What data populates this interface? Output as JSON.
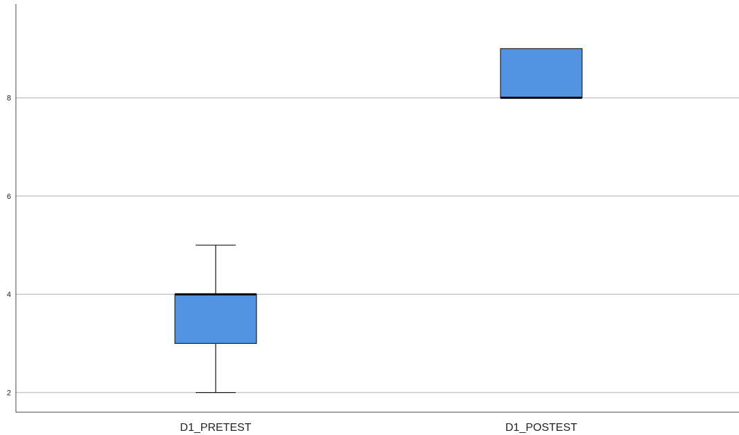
{
  "chart_data": {
    "type": "box",
    "title": "",
    "xlabel": "",
    "ylabel": "",
    "categories": [
      "D1_PRETEST",
      "D1_POSTEST"
    ],
    "boxes": [
      {
        "category": "D1_PRETEST",
        "min": 2,
        "q1": 3,
        "median": 4,
        "q3": 4,
        "max": 5
      },
      {
        "category": "D1_POSTEST",
        "min": 8,
        "q1": 8,
        "median": 8,
        "q3": 9,
        "max": 9
      }
    ],
    "yticks": [
      "2",
      "4",
      "6",
      "8"
    ],
    "ylim": [
      1.6,
      9.99
    ],
    "grid": true,
    "legend": "none",
    "colors": {
      "box_fill": "#5294e2"
    }
  }
}
